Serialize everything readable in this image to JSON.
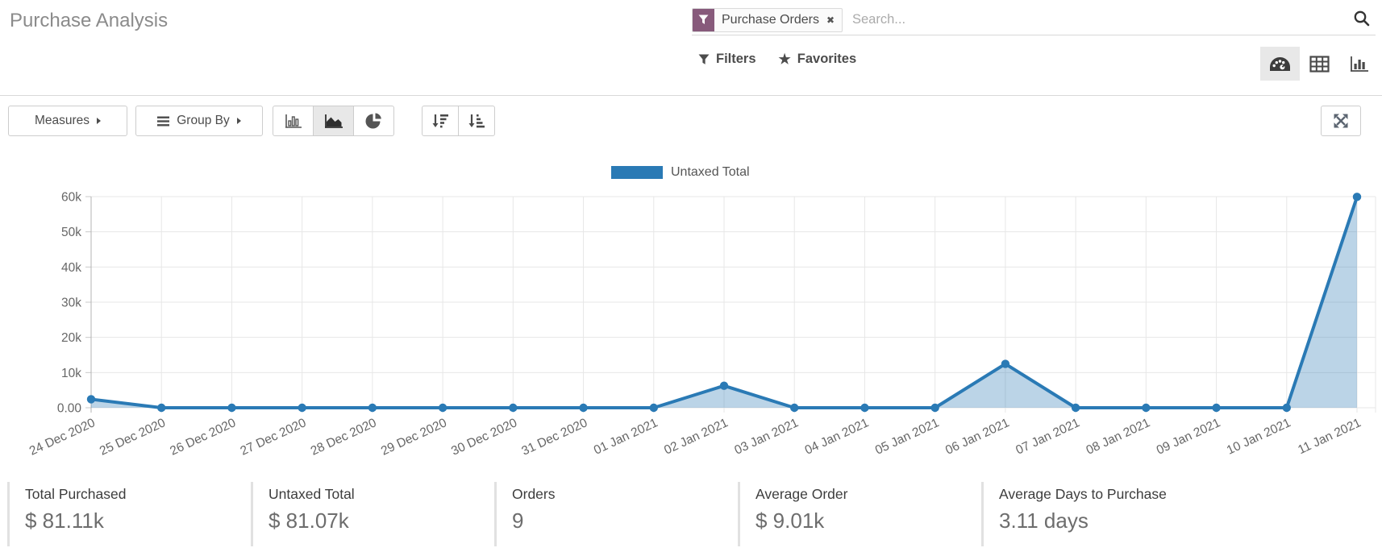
{
  "page": {
    "title": "Purchase Analysis"
  },
  "search": {
    "facet_label": "Purchase Orders",
    "facet_remove_glyph": "✖",
    "placeholder": "Search...",
    "filters_label": "Filters",
    "favorites_label": "Favorites"
  },
  "view_switcher": {
    "dashboard": {
      "active": true
    },
    "pivot": {
      "active": false
    },
    "graph": {
      "active": false
    }
  },
  "toolbar": {
    "measures_label": "Measures",
    "group_by_label": "Group By",
    "chart_types": {
      "bar": {
        "active": false
      },
      "area": {
        "active": true
      },
      "pie": {
        "active": false
      }
    }
  },
  "legend": {
    "label": "Untaxed Total"
  },
  "chart_data": {
    "type": "area",
    "title": "",
    "xlabel": "",
    "ylabel": "",
    "grid": true,
    "legend_position": "top",
    "categories": [
      "24 Dec 2020",
      "25 Dec 2020",
      "26 Dec 2020",
      "27 Dec 2020",
      "28 Dec 2020",
      "29 Dec 2020",
      "30 Dec 2020",
      "31 Dec 2020",
      "01 Jan 2021",
      "02 Jan 2021",
      "03 Jan 2021",
      "04 Jan 2021",
      "05 Jan 2021",
      "06 Jan 2021",
      "07 Jan 2021",
      "08 Jan 2021",
      "09 Jan 2021",
      "10 Jan 2021",
      "11 Jan 2021"
    ],
    "series": [
      {
        "name": "Untaxed Total",
        "values": [
          2420,
          0,
          0,
          0,
          0,
          0,
          0,
          0,
          0,
          6260,
          0,
          0,
          0,
          12470,
          0,
          0,
          0,
          0,
          59920
        ]
      }
    ],
    "ylim": [
      0,
      60000
    ],
    "ytick_step": 10000,
    "ytick_labels": [
      "0.00",
      "10k",
      "20k",
      "30k",
      "40k",
      "50k",
      "60k"
    ],
    "line_color": "#2a7ab5",
    "fill_opacity": 0.32,
    "grid_color": "#e7e7e7",
    "axis_line_color": "#b3b3b3",
    "tick_text_color": "#666666"
  },
  "stats": [
    {
      "label": "Total Purchased",
      "value": "$ 81.11k"
    },
    {
      "label": "Untaxed Total",
      "value": "$ 81.07k"
    },
    {
      "label": "Orders",
      "value": "9"
    },
    {
      "label": "Average Order",
      "value": "$ 9.01k"
    },
    {
      "label": "Average Days to Purchase",
      "value": "3.11 days"
    }
  ],
  "icons": {
    "star_glyph": "★"
  }
}
